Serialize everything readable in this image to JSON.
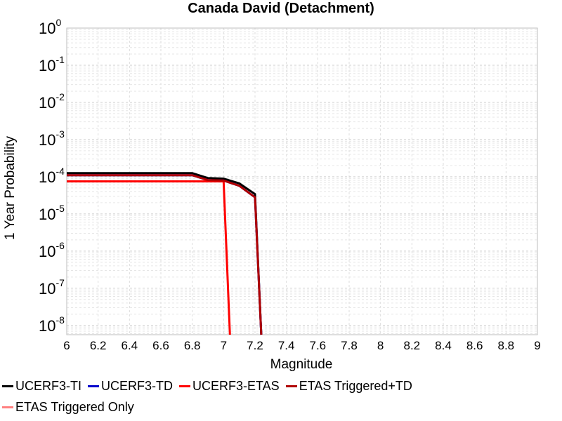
{
  "chart_data": {
    "type": "line",
    "title": "Canada David (Detachment)",
    "xlabel": "Magnitude",
    "ylabel": "1 Year Probability",
    "xlim": [
      6,
      9
    ],
    "ylim_exponents": [
      -8.25,
      0
    ],
    "log_y": true,
    "grid": true,
    "legend_placement": "bottom",
    "x_ticks": [
      "6",
      "6.2",
      "6.4",
      "6.6",
      "6.8",
      "7",
      "7.2",
      "7.4",
      "7.6",
      "7.8",
      "8",
      "8.2",
      "8.4",
      "8.6",
      "8.8",
      "9"
    ],
    "y_ticks": [
      {
        "base": "10",
        "exp": "0"
      },
      {
        "base": "10",
        "exp": "-1"
      },
      {
        "base": "10",
        "exp": "-2"
      },
      {
        "base": "10",
        "exp": "-3"
      },
      {
        "base": "10",
        "exp": "-4"
      },
      {
        "base": "10",
        "exp": "-5"
      },
      {
        "base": "10",
        "exp": "-6"
      },
      {
        "base": "10",
        "exp": "-7"
      },
      {
        "base": "10",
        "exp": "-8"
      }
    ],
    "series": [
      {
        "name": "UCERF3-TI",
        "color": "#000000",
        "x": [
          6.0,
          6.1,
          6.2,
          6.3,
          6.4,
          6.5,
          6.6,
          6.7,
          6.8,
          6.9,
          7.0,
          7.1,
          7.2,
          7.24
        ],
        "y": [
          0.000125,
          0.000125,
          0.000125,
          0.000125,
          0.000125,
          0.000125,
          0.000125,
          0.000125,
          0.000125,
          9.2e-05,
          8.9e-05,
          6.6e-05,
          3.4e-05,
          5e-09
        ]
      },
      {
        "name": "UCERF3-TD",
        "color": "#0000cc",
        "x": [
          6.0,
          6.1,
          6.2,
          6.3,
          6.4,
          6.5,
          6.6,
          6.7,
          6.8,
          6.9,
          7.0,
          7.1,
          7.2,
          7.24
        ],
        "y": [
          0.00011,
          0.00011,
          0.00011,
          0.00011,
          0.00011,
          0.00011,
          0.00011,
          0.00011,
          0.00011,
          8.1e-05,
          7.9e-05,
          5.7e-05,
          2.8e-05,
          5e-09
        ]
      },
      {
        "name": "UCERF3-ETAS",
        "color": "#ff0000",
        "x": [
          6.0,
          6.1,
          6.2,
          6.3,
          6.4,
          6.5,
          6.6,
          6.7,
          6.8,
          6.9,
          7.0,
          7.04
        ],
        "y": [
          7.5e-05,
          7.5e-05,
          7.5e-05,
          7.5e-05,
          7.5e-05,
          7.5e-05,
          7.5e-05,
          7.5e-05,
          7.5e-05,
          7.5e-05,
          7.5e-05,
          5e-09
        ]
      },
      {
        "name": "ETAS Triggered+TD",
        "color": "#b00000",
        "x": [
          6.0,
          6.1,
          6.2,
          6.3,
          6.4,
          6.5,
          6.6,
          6.7,
          6.8,
          6.9,
          7.0,
          7.1,
          7.2,
          7.24
        ],
        "y": [
          0.00011,
          0.00011,
          0.00011,
          0.00011,
          0.00011,
          0.00011,
          0.00011,
          0.00011,
          0.00011,
          8.1e-05,
          7.9e-05,
          5.7e-05,
          2.8e-05,
          5e-09
        ]
      },
      {
        "name": "ETAS Triggered Only",
        "color": "#ff8080",
        "x": [],
        "y": []
      }
    ]
  }
}
